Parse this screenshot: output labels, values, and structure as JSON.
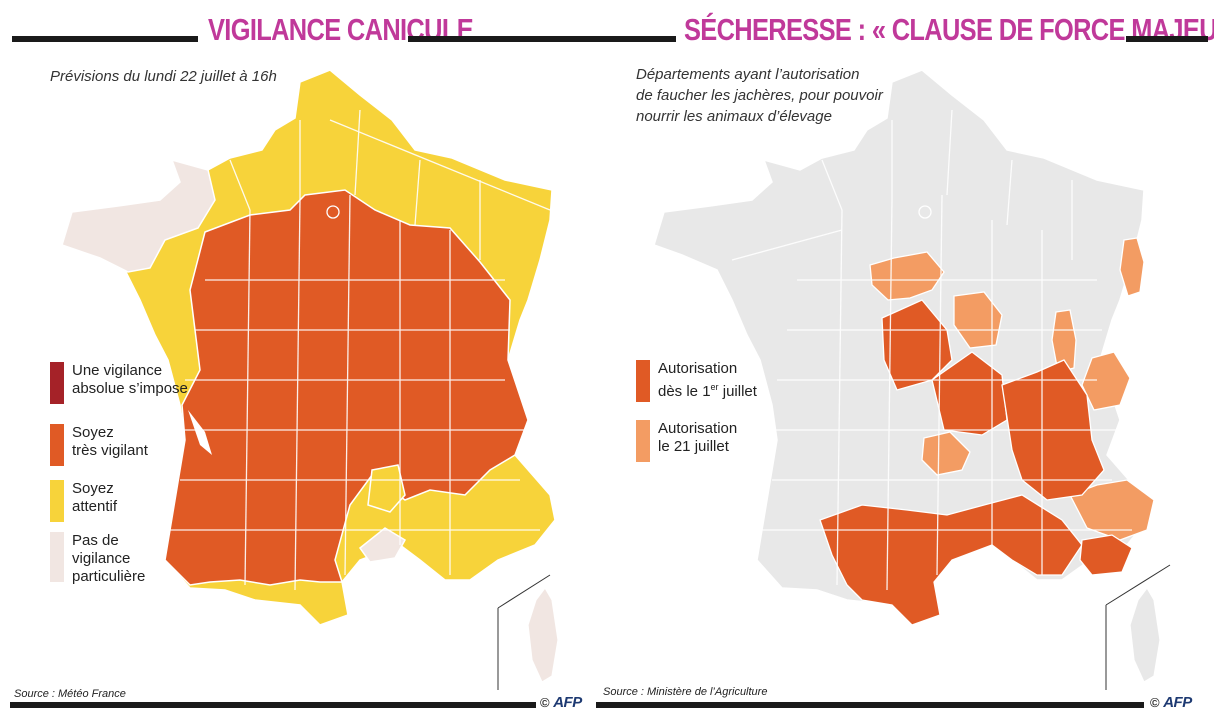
{
  "colors": {
    "absolute": "#a52228",
    "orange": "#e05a25",
    "yellow": "#f7d33a",
    "pale": "#f1e6e2",
    "grey": "#e8e8e8",
    "lightorange": "#f39c63",
    "title": "#c0399a"
  },
  "left": {
    "title": "VIGILANCE CANICULE",
    "subtitle": "Prévisions du lundi 22 juillet à 16h",
    "legend": [
      {
        "label_lines": [
          "Une vigilance",
          "absolue s’impose"
        ],
        "color": "#a52228"
      },
      {
        "label_lines": [
          "Soyez",
          "très vigilant"
        ],
        "color": "#e05a25"
      },
      {
        "label_lines": [
          "Soyez",
          "attentif"
        ],
        "color": "#f7d33a"
      },
      {
        "label_lines": [
          "Pas de",
          "vigilance",
          "particulière"
        ],
        "color": "#f1e6e2"
      }
    ],
    "source": "Source : Météo France",
    "credit_symbol": "©",
    "credit_agency": "AFP"
  },
  "right": {
    "title": "SÉCHERESSE : « CLAUSE DE FORCE MAJEURE »",
    "subtitle_lines": [
      "Départements ayant l’autorisation",
      "de faucher les jachères, pour pouvoir",
      "nourrir les animaux d’élevage"
    ],
    "legend": [
      {
        "line1": "Autorisation",
        "line2_prefix": "dès le 1",
        "line2_sup": "er",
        "line2_suffix": " juillet",
        "color": "#e05a25"
      },
      {
        "line1": "Autorisation",
        "line2_prefix": "le 21 juillet",
        "line2_sup": "",
        "line2_suffix": "",
        "color": "#f39c63"
      }
    ],
    "source": "Source : Ministère de l’Agriculture",
    "credit_symbol": "©",
    "credit_agency": "AFP"
  }
}
